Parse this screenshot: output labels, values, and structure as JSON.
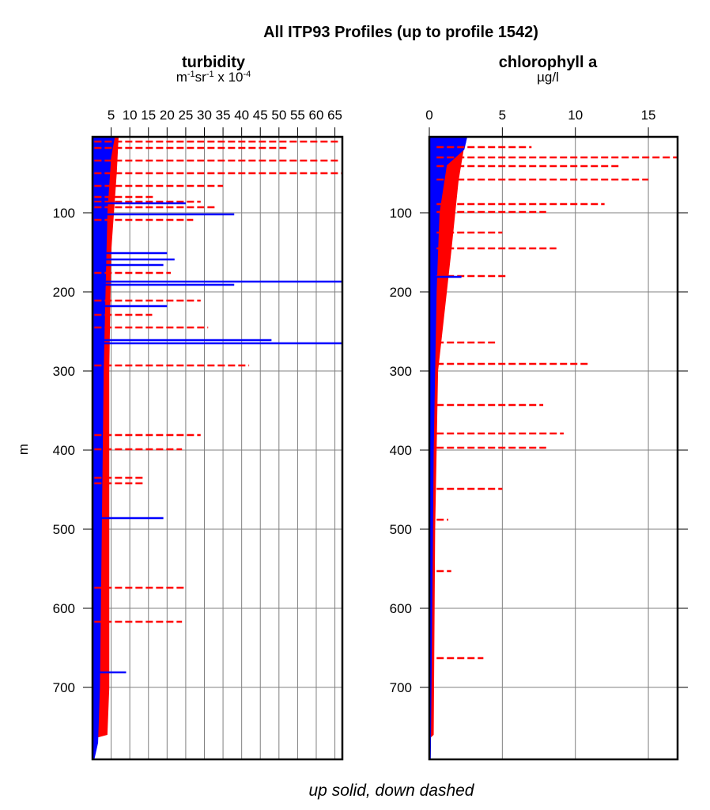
{
  "title": "All ITP93 Profiles (up to profile 1542)",
  "footer": "up solid, down dashed",
  "colors": {
    "up": "#0000ff",
    "down": "#ff0000",
    "grid": "#808080"
  },
  "chart_data": [
    {
      "type": "line",
      "title": "turbidity",
      "units": [
        "m",
        "-1",
        "sr",
        "-1",
        " x 10",
        "-4"
      ],
      "ylabel": "m",
      "xlim": [
        0,
        67
      ],
      "ylim": [
        791,
        4
      ],
      "grid": true,
      "xticks": [
        5,
        10,
        15,
        20,
        25,
        30,
        35,
        40,
        45,
        50,
        55,
        60,
        65
      ],
      "yticks": [
        100,
        200,
        300,
        400,
        500,
        600,
        700
      ],
      "envelope_up": [
        [
          4,
          6
        ],
        [
          30,
          5
        ],
        [
          100,
          4
        ],
        [
          300,
          3
        ],
        [
          500,
          2.5
        ],
        [
          700,
          2
        ],
        [
          770,
          1.5
        ],
        [
          791,
          0.5
        ]
      ],
      "envelope_down": [
        [
          4,
          7
        ],
        [
          50,
          6.5
        ],
        [
          150,
          5
        ],
        [
          300,
          4.5
        ],
        [
          500,
          4.5
        ],
        [
          700,
          4.5
        ],
        [
          760,
          4
        ],
        [
          765,
          0
        ]
      ],
      "series": [
        {
          "direction": "down",
          "style": "dashed",
          "spikes": [
            [
              10,
              66
            ],
            [
              18,
              52
            ],
            [
              34,
              66
            ],
            [
              50,
              67
            ],
            [
              66,
              35
            ],
            [
              80,
              17
            ],
            [
              86,
              29
            ],
            [
              93,
              33
            ],
            [
              109,
              27
            ],
            [
              176,
              21
            ],
            [
              211,
              29
            ],
            [
              245,
              31
            ],
            [
              293,
              42
            ],
            [
              229,
              16
            ],
            [
              381,
              29
            ],
            [
              399,
              24
            ],
            [
              435,
              14
            ],
            [
              442,
              14
            ],
            [
              574,
              25
            ],
            [
              617,
              24
            ]
          ]
        },
        {
          "direction": "up",
          "style": "solid",
          "spikes": [
            [
              88,
              25
            ],
            [
              102,
              38
            ],
            [
              151,
              20
            ],
            [
              159,
              22
            ],
            [
              166,
              19
            ],
            [
              187,
              67
            ],
            [
              191,
              38
            ],
            [
              218,
              20
            ],
            [
              265,
              67
            ],
            [
              261,
              48
            ],
            [
              486,
              19
            ],
            [
              681,
              9
            ]
          ]
        }
      ]
    },
    {
      "type": "line",
      "title": "chlorophyll a",
      "units": [
        "µg/l"
      ],
      "xlim": [
        0,
        17
      ],
      "ylim": [
        791,
        4
      ],
      "grid": true,
      "xticks": [
        0,
        5,
        10,
        15
      ],
      "yticks": [
        100,
        200,
        300,
        400,
        500,
        600,
        700
      ],
      "envelope_up": [
        [
          4,
          2.6
        ],
        [
          20,
          2.4
        ],
        [
          40,
          1.2
        ],
        [
          100,
          0.7
        ],
        [
          200,
          0.5
        ],
        [
          400,
          0.3
        ],
        [
          600,
          0.2
        ],
        [
          791,
          0.1
        ]
      ],
      "envelope_down": [
        [
          4,
          2.5
        ],
        [
          60,
          2
        ],
        [
          150,
          1.5
        ],
        [
          300,
          0.6
        ],
        [
          500,
          0.4
        ],
        [
          760,
          0.3
        ],
        [
          765,
          0
        ]
      ],
      "series": [
        {
          "direction": "down",
          "style": "dashed",
          "spikes": [
            [
              17,
              7
            ],
            [
              30,
              17
            ],
            [
              41,
              13
            ],
            [
              58,
              15
            ],
            [
              89,
              12
            ],
            [
              99,
              8
            ],
            [
              125,
              5
            ],
            [
              145,
              8.7
            ],
            [
              180,
              5.3
            ],
            [
              264,
              4.5
            ],
            [
              291,
              11
            ],
            [
              343,
              7.8
            ],
            [
              379,
              9.2
            ],
            [
              397,
              8
            ],
            [
              449,
              5
            ],
            [
              488,
              1.3
            ],
            [
              553,
              1.5
            ],
            [
              663,
              3.7
            ]
          ]
        },
        {
          "direction": "up",
          "style": "solid",
          "spikes": [
            [
              11,
              2.5
            ],
            [
              181,
              2.2
            ]
          ]
        }
      ]
    }
  ]
}
